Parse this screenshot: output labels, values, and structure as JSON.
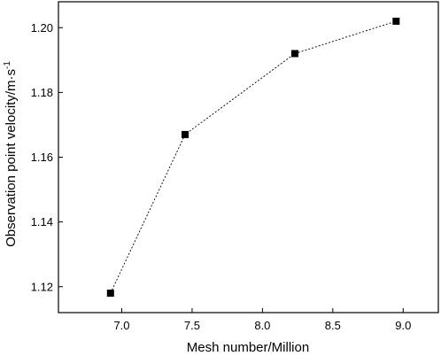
{
  "chart_data": {
    "type": "line",
    "title": "",
    "xlabel": "Mesh number/Million",
    "ylabel_main": "Observation point velocity/m·s",
    "ylabel_sup": "-1",
    "xlim": [
      6.55,
      9.25
    ],
    "ylim": [
      1.112,
      1.208
    ],
    "xticks": [
      7.0,
      7.5,
      8.0,
      8.5,
      9.0
    ],
    "xtick_labels": [
      "7.0",
      "7.5",
      "8.0",
      "8.5",
      "9.0"
    ],
    "yticks": [
      1.12,
      1.14,
      1.16,
      1.18,
      1.2
    ],
    "ytick_labels": [
      "1.12",
      "1.14",
      "1.16",
      "1.18",
      "1.20"
    ],
    "grid": false,
    "line_style": "dotted",
    "marker": "square",
    "color": "#000000",
    "series": [
      {
        "x": [
          6.92,
          7.45,
          8.23,
          8.95
        ],
        "y": [
          1.118,
          1.167,
          1.192,
          1.202
        ]
      }
    ]
  }
}
